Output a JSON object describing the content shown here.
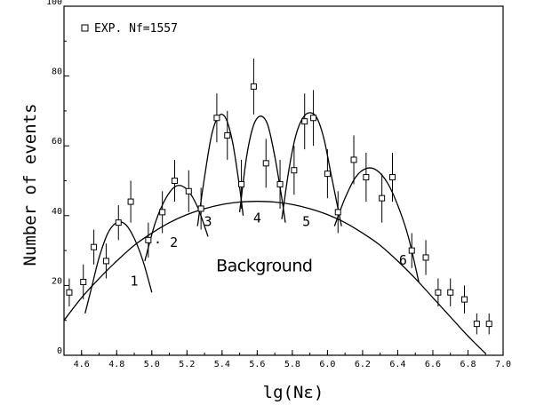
{
  "chart_data": {
    "type": "scatter",
    "xlabel": "lg(Nε)",
    "ylabel": "Number of events",
    "xlim": [
      4.5,
      7.0
    ],
    "ylim": [
      0,
      100
    ],
    "x_ticks": [
      "4.6",
      "4.8",
      "5.0",
      "5.2",
      "5.4",
      "5.6",
      "5.8",
      "6.0",
      "6.2",
      "6.4",
      "6.6",
      "6.8",
      "7.0"
    ],
    "y_ticks": [
      "0",
      "20",
      "40",
      "60",
      "80",
      "100"
    ],
    "x_tick_values": [
      4.6,
      4.8,
      5.0,
      5.2,
      5.4,
      5.6,
      5.8,
      6.0,
      6.2,
      6.4,
      6.6,
      6.8,
      7.0
    ],
    "y_tick_values": [
      0,
      20,
      40,
      60,
      80,
      100
    ],
    "legend": [
      {
        "marker": "open-square",
        "label": "EXP. Nf=1557"
      }
    ],
    "legend_position": "top-left",
    "series": [
      {
        "name": "EXP. Nf=1557",
        "type": "scatter-errorbar",
        "points": [
          {
            "x": 4.53,
            "y": 18,
            "err": 4
          },
          {
            "x": 4.61,
            "y": 21,
            "err": 5
          },
          {
            "x": 4.67,
            "y": 31,
            "err": 5
          },
          {
            "x": 4.74,
            "y": 27,
            "err": 5
          },
          {
            "x": 4.81,
            "y": 38,
            "err": 5
          },
          {
            "x": 4.88,
            "y": 44,
            "err": 6
          },
          {
            "x": 4.98,
            "y": 33,
            "err": 5
          },
          {
            "x": 5.06,
            "y": 41,
            "err": 6
          },
          {
            "x": 5.13,
            "y": 50,
            "err": 6
          },
          {
            "x": 5.21,
            "y": 47,
            "err": 6
          },
          {
            "x": 5.28,
            "y": 42,
            "err": 6
          },
          {
            "x": 5.37,
            "y": 68,
            "err": 7
          },
          {
            "x": 5.43,
            "y": 63,
            "err": 7
          },
          {
            "x": 5.51,
            "y": 49,
            "err": 7
          },
          {
            "x": 5.58,
            "y": 77,
            "err": 8
          },
          {
            "x": 5.65,
            "y": 55,
            "err": 7
          },
          {
            "x": 5.73,
            "y": 49,
            "err": 7
          },
          {
            "x": 5.81,
            "y": 53,
            "err": 7
          },
          {
            "x": 5.87,
            "y": 67,
            "err": 8
          },
          {
            "x": 5.92,
            "y": 68,
            "err": 8
          },
          {
            "x": 6.0,
            "y": 52,
            "err": 7
          },
          {
            "x": 6.06,
            "y": 41,
            "err": 6
          },
          {
            "x": 6.15,
            "y": 56,
            "err": 7
          },
          {
            "x": 6.22,
            "y": 51,
            "err": 7
          },
          {
            "x": 6.31,
            "y": 45,
            "err": 7
          },
          {
            "x": 6.37,
            "y": 51,
            "err": 7
          },
          {
            "x": 6.48,
            "y": 30,
            "err": 5
          },
          {
            "x": 6.56,
            "y": 28,
            "err": 5
          },
          {
            "x": 6.63,
            "y": 18,
            "err": 4
          },
          {
            "x": 6.7,
            "y": 18,
            "err": 4
          },
          {
            "x": 6.78,
            "y": 16,
            "err": 4
          },
          {
            "x": 6.85,
            "y": 9,
            "err": 3
          },
          {
            "x": 6.92,
            "y": 9,
            "err": 3
          }
        ]
      },
      {
        "name": "Background",
        "type": "line",
        "x": [
          4.5,
          4.6,
          4.7,
          4.8,
          4.9,
          5.0,
          5.1,
          5.2,
          5.3,
          5.4,
          5.5,
          5.6,
          5.7,
          5.8,
          5.9,
          6.0,
          6.1,
          6.2,
          6.3,
          6.4,
          6.5,
          6.6,
          6.7,
          6.8,
          6.9
        ],
        "y": [
          10,
          16.5,
          22,
          27,
          31.5,
          35,
          38,
          40.3,
          42,
          43.2,
          43.9,
          44.1,
          43.9,
          43.2,
          42,
          40.3,
          38,
          35,
          31.5,
          27,
          22,
          16.5,
          11,
          5.5,
          0.5
        ]
      },
      {
        "name": "1",
        "type": "line",
        "x": [
          4.62,
          4.66,
          4.7,
          4.75,
          4.8,
          4.85,
          4.9,
          4.95,
          5.0
        ],
        "y": [
          12,
          20,
          28,
          35,
          38,
          37.5,
          33.5,
          27,
          18
        ]
      },
      {
        "name": "2",
        "type": "line",
        "x": [
          4.96,
          5.02,
          5.08,
          5.14,
          5.2,
          5.26,
          5.32
        ],
        "y": [
          27,
          38,
          45,
          48.5,
          47.5,
          42.5,
          34
        ]
      },
      {
        "name": "3",
        "type": "line",
        "x": [
          5.26,
          5.3,
          5.34,
          5.38,
          5.42,
          5.46,
          5.5,
          5.52
        ],
        "y": [
          37,
          51,
          63,
          68.5,
          68,
          61,
          48,
          40
        ]
      },
      {
        "name": "4",
        "type": "line",
        "x": [
          5.5,
          5.54,
          5.58,
          5.62,
          5.66,
          5.7,
          5.74,
          5.76
        ],
        "y": [
          41,
          57,
          66,
          68.5,
          66,
          57,
          45,
          38
        ]
      },
      {
        "name": "5",
        "type": "line",
        "x": [
          5.74,
          5.78,
          5.82,
          5.86,
          5.9,
          5.94,
          5.98,
          6.02,
          6.06,
          6.08
        ],
        "y": [
          39,
          53,
          63,
          68,
          69.5,
          68,
          62,
          52,
          42,
          37
        ]
      },
      {
        "name": "6",
        "type": "line",
        "x": [
          6.04,
          6.1,
          6.16,
          6.22,
          6.28,
          6.34,
          6.4,
          6.46,
          6.52
        ],
        "y": [
          37,
          45,
          51,
          53.5,
          53,
          49.5,
          43,
          34,
          21
        ]
      }
    ],
    "annotations": [
      {
        "text": "1",
        "x": 4.9,
        "y": 20
      },
      {
        "text": "· 2",
        "x": 5.08,
        "y": 31
      },
      {
        "text": "3",
        "x": 5.32,
        "y": 37
      },
      {
        "text": "4",
        "x": 5.6,
        "y": 38
      },
      {
        "text": "5",
        "x": 5.88,
        "y": 37
      },
      {
        "text": "6",
        "x": 6.43,
        "y": 26
      },
      {
        "text": "Background",
        "x": 5.64,
        "y": 24
      }
    ]
  }
}
